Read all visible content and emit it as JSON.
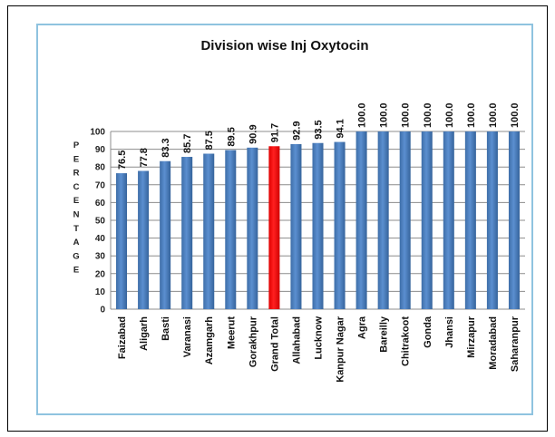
{
  "chart_data": {
    "type": "bar",
    "title": "Division wise Inj Oxytocin",
    "xlabel": "",
    "ylabel": "PERCENTAGE",
    "ylim": [
      0,
      100
    ],
    "yticks": [
      0,
      10,
      20,
      30,
      40,
      50,
      60,
      70,
      80,
      90,
      100
    ],
    "grid": true,
    "legend": "none",
    "categories": [
      "Faizabad",
      "Aligarh",
      "Basti",
      "Varanasi",
      "Azamgarh",
      "Meerut",
      "Gorakhpur",
      "Grand Total",
      "Allahabad",
      "Lucknow",
      "Kanpur Nagar",
      "Agra",
      "Bareilly",
      "Chitrakoot",
      "Gonda",
      "Jhansi",
      "Mirzapur",
      "Moradabad",
      "Saharanpur"
    ],
    "values": [
      76.5,
      77.8,
      83.3,
      85.7,
      87.5,
      89.5,
      90.9,
      91.7,
      92.9,
      93.5,
      94.1,
      100.0,
      100.0,
      100.0,
      100.0,
      100.0,
      100.0,
      100.0,
      100.0
    ],
    "data_labels": [
      "76.5",
      "77.8",
      "83.3",
      "85.7",
      "87.5",
      "89.5",
      "90.9",
      "91.7",
      "92.9",
      "93.5",
      "94.1",
      "100.0",
      "100.0",
      "100.0",
      "100.0",
      "100.0",
      "100.0",
      "100.0",
      "100.0"
    ],
    "highlight_category": "Grand Total",
    "colors": {
      "bar": "#4a7ebb",
      "bar_highlight": "#ff0000",
      "grid": "#8c8c8c",
      "chart_border": "#8fc3df"
    }
  }
}
